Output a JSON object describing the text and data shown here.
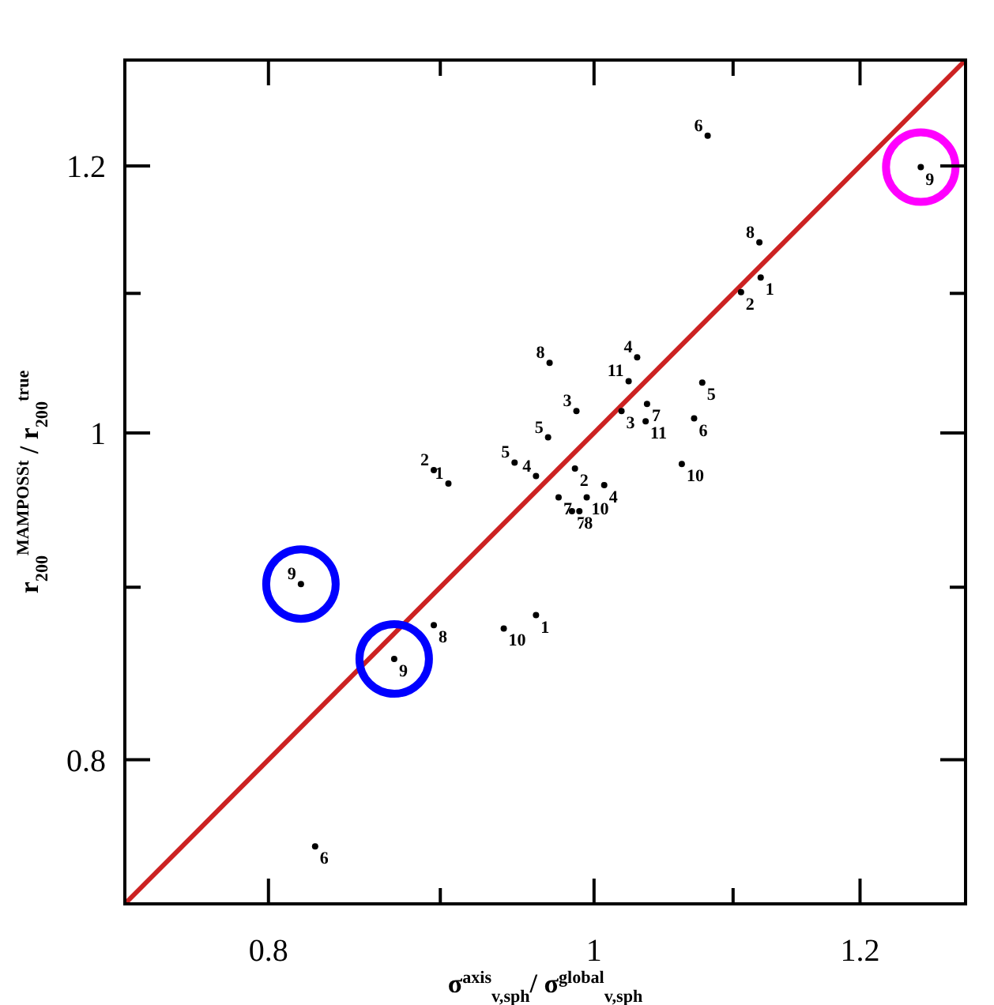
{
  "chart_data": {
    "type": "scatter",
    "xlabel": "σ$^{axis}$$_{v,sph}$/ σ$^{global}$$_{v,sph}$",
    "ylabel": "r$_{200}$$^{MAMPOSSt}$ / r$_{200}$$^{true}$",
    "log": "xy",
    "xlim": [
      0.725,
      1.29
    ],
    "ylim": [
      0.725,
      1.29
    ],
    "xticks": [
      0.8,
      {
        "value": 0.9,
        "label": null
      },
      1,
      {
        "value": 1.1,
        "label": null
      },
      1.2
    ],
    "yticks": [
      0.8,
      {
        "value": 0.9,
        "label": null
      },
      1,
      {
        "value": 1.1,
        "label": null
      },
      1.2
    ],
    "marker": "circle",
    "series": [
      {
        "name": "1",
        "color": "#000000",
        "x": [
          1.121,
          0.905,
          0.961
        ],
        "values": [
          1.112,
          0.966,
          0.883
        ]
      },
      {
        "name": "2",
        "color": "#000000",
        "x": [
          1.106,
          0.896,
          0.987
        ],
        "values": [
          1.101,
          0.975,
          0.976
        ]
      },
      {
        "name": "3",
        "color": "#000000",
        "x": [
          0.988,
          1.019
        ],
        "values": [
          1.015,
          1.015
        ]
      },
      {
        "name": "4",
        "color": "#000000",
        "x": [
          1.03,
          0.961,
          1.007
        ],
        "values": [
          1.053,
          0.971,
          0.965
        ]
      },
      {
        "name": "5",
        "color": "#000000",
        "x": [
          1.077,
          0.969,
          0.947
        ],
        "values": [
          1.035,
          0.997,
          0.98
        ]
      },
      {
        "name": "6",
        "color": "#000000",
        "x": [
          1.081,
          1.071,
          0.826
        ],
        "values": [
          1.225,
          1.01,
          0.754
        ]
      },
      {
        "name": "7",
        "color": "#000000",
        "x": [
          1.037,
          0.976,
          0.985
        ],
        "values": [
          1.02,
          0.957,
          0.948
        ]
      },
      {
        "name": "8",
        "color": "#000000",
        "x": [
          1.12,
          0.97,
          0.99,
          0.896
        ],
        "values": [
          1.139,
          1.049,
          0.948,
          0.877
        ]
      },
      {
        "name": "9",
        "color": "#000000",
        "x": [
          1.251,
          0.818,
          0.872
        ],
        "values": [
          1.199,
          0.902,
          0.857
        ]
      },
      {
        "name": "10",
        "color": "#000000",
        "x": [
          1.062,
          0.995,
          0.94
        ],
        "values": [
          0.979,
          0.957,
          0.875
        ]
      },
      {
        "name": "11",
        "color": "#000000",
        "x": [
          1.024,
          1.036
        ],
        "values": [
          1.036,
          1.008
        ]
      },
      {
        "color": "#ff00ff",
        "x": [
          1.251
        ],
        "values": [
          1.199
        ]
      },
      {
        "color": "#0000ff",
        "x": [
          0.818,
          0.872
        ],
        "values": [
          0.902,
          0.857
        ]
      },
      {
        "type": "line",
        "marker": "none",
        "color": "#cc2222",
        "x": [
          0.725,
          1.29
        ],
        "values": [
          0.725,
          1.29
        ]
      }
    ]
  }
}
